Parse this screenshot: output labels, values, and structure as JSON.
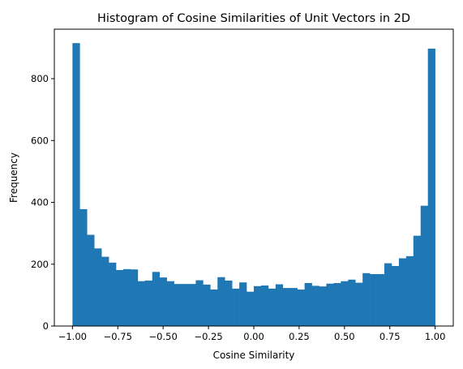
{
  "chart_data": {
    "type": "bar",
    "title": "Histogram of Cosine Similarities of Unit Vectors in 2D",
    "xlabel": "Cosine Similarity",
    "ylabel": "Frequency",
    "xlim": [
      -1.1,
      1.1
    ],
    "ylim": [
      0,
      960
    ],
    "bin_range": [
      -1.0,
      1.0
    ],
    "bins": 50,
    "bar_color": "#1f77b4",
    "grid": false,
    "x_ticks": [
      -1.0,
      -0.75,
      -0.5,
      -0.25,
      0.0,
      0.25,
      0.5,
      0.75,
      1.0
    ],
    "x_tick_labels": [
      "−1.00",
      "−0.75",
      "−0.50",
      "−0.25",
      "0.00",
      "0.25",
      "0.50",
      "0.75",
      "1.00"
    ],
    "y_ticks": [
      0,
      200,
      400,
      600,
      800
    ],
    "y_tick_labels": [
      "0",
      "200",
      "400",
      "600",
      "800"
    ],
    "values": [
      915,
      378,
      295,
      251,
      224,
      205,
      181,
      184,
      183,
      145,
      147,
      175,
      157,
      145,
      136,
      136,
      136,
      148,
      134,
      118,
      158,
      147,
      121,
      141,
      111,
      129,
      131,
      121,
      135,
      123,
      123,
      118,
      139,
      130,
      128,
      137,
      139,
      145,
      150,
      140,
      171,
      168,
      168,
      203,
      194,
      219,
      226,
      292,
      389,
      897
    ]
  }
}
